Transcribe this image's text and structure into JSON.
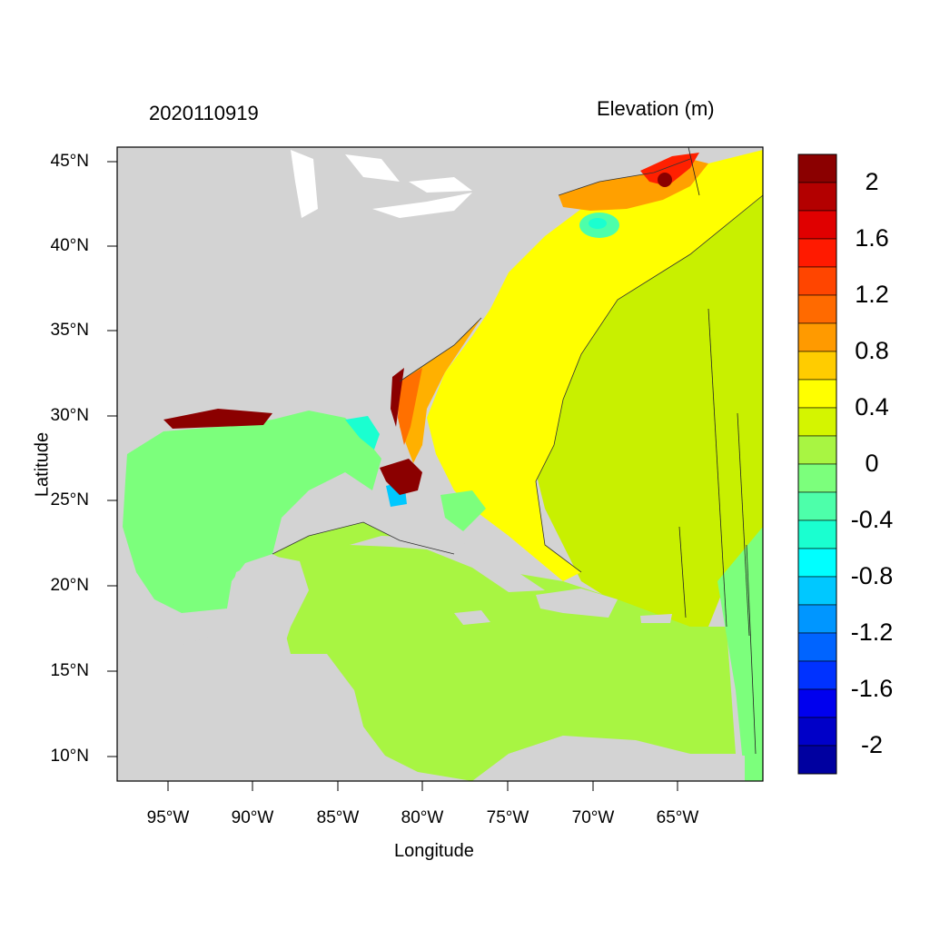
{
  "map": {
    "date_label": "2020110919",
    "variable_label": "Elevation (m)",
    "xlabel": "Longitude",
    "ylabel": "Latitude",
    "lat_ticks": [
      "45°N",
      "40°N",
      "35°N",
      "30°N",
      "25°N",
      "20°N",
      "15°N",
      "10°N"
    ],
    "lon_ticks": [
      "95°W",
      "90°W",
      "85°W",
      "80°W",
      "75°W",
      "70°W",
      "65°W"
    ],
    "extent": {
      "lon": [
        -98,
        -60.5
      ],
      "lat": [
        8.5,
        46
      ]
    },
    "land_color": "#d3d3d3",
    "water_color": "#ffffff"
  },
  "colorbar": {
    "labels": [
      "2",
      "1.6",
      "1.2",
      "0.8",
      "0.4",
      "0",
      "-0.4",
      "-0.8",
      "-1.2",
      "-1.6",
      "-2"
    ],
    "colors": [
      "#8b0000",
      "#b30000",
      "#e00000",
      "#ff1a00",
      "#ff4500",
      "#ff6a00",
      "#ff9a00",
      "#ffcc00",
      "#ffff00",
      "#d4f500",
      "#a8f542",
      "#7cff7c",
      "#4dffaa",
      "#1affd0",
      "#00ffff",
      "#00c8ff",
      "#0096ff",
      "#0064ff",
      "#0032ff",
      "#0000ee",
      "#0000c8",
      "#0000a0"
    ]
  },
  "features": {
    "gulf_of_mexico": "#7cff7c",
    "caribbean": "#a8f542",
    "open_atlantic": "#c8f000",
    "gulf_stream_band": "#ffff00",
    "southeast_shelf": "#ffb000",
    "gulf_of_maine": "#ff7a00"
  }
}
